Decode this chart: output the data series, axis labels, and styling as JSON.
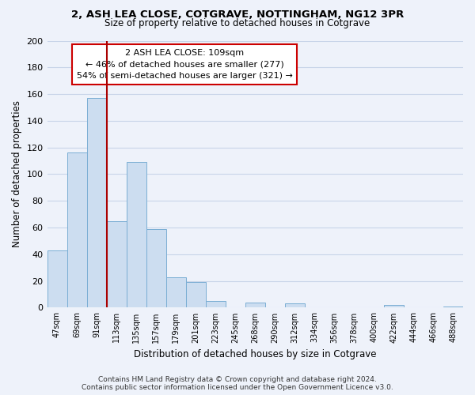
{
  "title_line1": "2, ASH LEA CLOSE, COTGRAVE, NOTTINGHAM, NG12 3PR",
  "title_line2": "Size of property relative to detached houses in Cotgrave",
  "xlabel": "Distribution of detached houses by size in Cotgrave",
  "ylabel": "Number of detached properties",
  "bar_color": "#ccddf0",
  "bar_edge_color": "#7aaed4",
  "categories": [
    "47sqm",
    "69sqm",
    "91sqm",
    "113sqm",
    "135sqm",
    "157sqm",
    "179sqm",
    "201sqm",
    "223sqm",
    "245sqm",
    "268sqm",
    "290sqm",
    "312sqm",
    "334sqm",
    "356sqm",
    "378sqm",
    "400sqm",
    "422sqm",
    "444sqm",
    "466sqm",
    "488sqm"
  ],
  "values": [
    43,
    116,
    157,
    65,
    109,
    59,
    23,
    19,
    5,
    0,
    4,
    0,
    3,
    0,
    0,
    0,
    0,
    2,
    0,
    0,
    1
  ],
  "ylim": [
    0,
    200
  ],
  "yticks": [
    0,
    20,
    40,
    60,
    80,
    100,
    120,
    140,
    160,
    180,
    200
  ],
  "vline_color": "#aa0000",
  "annotation_text": "2 ASH LEA CLOSE: 109sqm\n← 46% of detached houses are smaller (277)\n54% of semi-detached houses are larger (321) →",
  "annotation_box_color": "#ffffff",
  "annotation_box_edge_color": "#cc0000",
  "footer_line1": "Contains HM Land Registry data © Crown copyright and database right 2024.",
  "footer_line2": "Contains public sector information licensed under the Open Government Licence v3.0.",
  "background_color": "#eef2fa",
  "grid_color": "#c8d4e8"
}
